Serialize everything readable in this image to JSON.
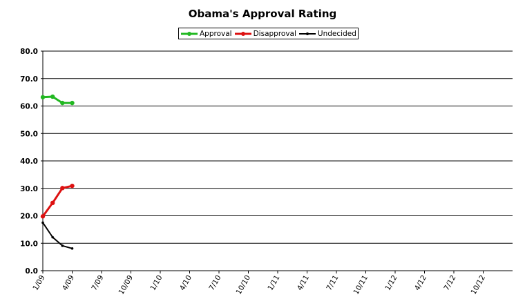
{
  "chart_data": {
    "type": "line",
    "title": "Obama's Approval Rating",
    "xlabel": "",
    "ylabel": "",
    "x": [
      "1/09",
      "2/09",
      "3/09",
      "4/09"
    ],
    "x_ticks": [
      "1/09",
      "4/09",
      "7/09",
      "10/09",
      "1/10",
      "4/10",
      "7/10",
      "10/10",
      "1/11",
      "4/11",
      "7/11",
      "10/11",
      "1/12",
      "4/12",
      "7/12",
      "10/12"
    ],
    "ylim": [
      0,
      80
    ],
    "y_ticks": [
      "0.0",
      "10.0",
      "20.0",
      "30.0",
      "40.0",
      "50.0",
      "60.0",
      "70.0",
      "80.0"
    ],
    "grid": "horizontal",
    "legend_position": "top-center",
    "series": [
      {
        "name": "Approval",
        "color": "#22b822",
        "values": [
          63.2,
          63.4,
          61.1,
          61.1
        ]
      },
      {
        "name": "Disapproval",
        "color": "#dd1111",
        "values": [
          19.8,
          24.7,
          30.1,
          30.9
        ]
      },
      {
        "name": "Undecided",
        "color": "#000000",
        "values": [
          17.5,
          12.2,
          9.1,
          8.1
        ]
      }
    ]
  }
}
